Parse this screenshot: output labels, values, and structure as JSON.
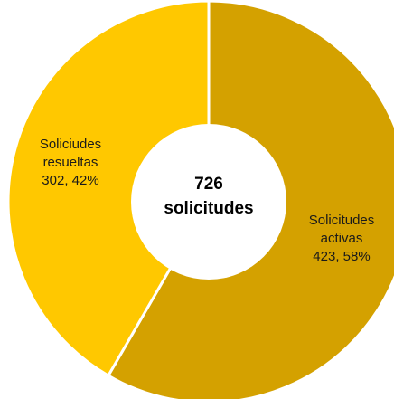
{
  "chart_data": {
    "type": "pie",
    "donut": true,
    "total": {
      "value": "726",
      "unit": "solicitudes"
    },
    "slices": [
      {
        "name": "Solicitudes activas",
        "label_lines": [
          "Solicitudes",
          "activas",
          "423, 58%"
        ],
        "value": 423,
        "percent": 58,
        "color": "#D4A100"
      },
      {
        "name": "Soliciudes resueltas",
        "label_lines": [
          "Soliciudes",
          "resueltas",
          "302, 42%"
        ],
        "value": 302,
        "percent": 42,
        "color": "#FFC800"
      }
    ]
  }
}
